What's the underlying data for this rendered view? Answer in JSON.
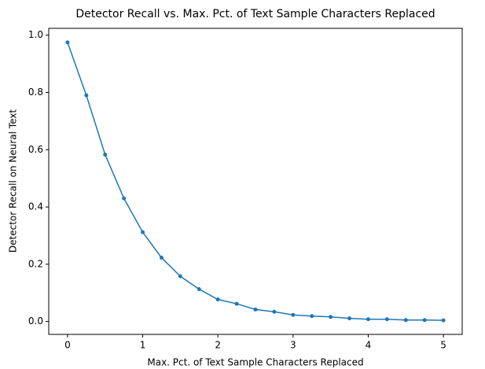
{
  "chart_data": {
    "type": "line",
    "title": "Detector Recall vs. Max. Pct. of Text Sample Characters Replaced",
    "x_label": "Max. Pct. of Text Sample Characters Replaced",
    "y_label": "Detector Recall on Neural Text",
    "x": [
      0,
      0.25,
      0.5,
      0.75,
      1,
      1.25,
      1.5,
      1.75,
      2,
      2.25,
      2.5,
      2.75,
      3,
      3.25,
      3.5,
      3.75,
      4,
      4.25,
      4.5,
      4.75,
      5
    ],
    "series": [
      {
        "color": "#1f77b4",
        "values": [
          0.975,
          0.79,
          0.583,
          0.43,
          0.312,
          0.223,
          0.158,
          0.113,
          0.077,
          0.062,
          0.042,
          0.034,
          0.023,
          0.019,
          0.016,
          0.011,
          0.008,
          0.008,
          0.005,
          0.005,
          0.004
        ]
      }
    ],
    "xlim": [
      -0.25,
      5.25
    ],
    "ylim": [
      -0.045,
      1.024
    ],
    "xticks": [
      0,
      1,
      2,
      3,
      4,
      5
    ],
    "yticks": [
      {
        "value": 0,
        "label": "0.0"
      },
      0.2,
      0.4,
      0.6,
      0.8,
      {
        "value": 1,
        "label": "1.0"
      }
    ],
    "grid": false
  }
}
